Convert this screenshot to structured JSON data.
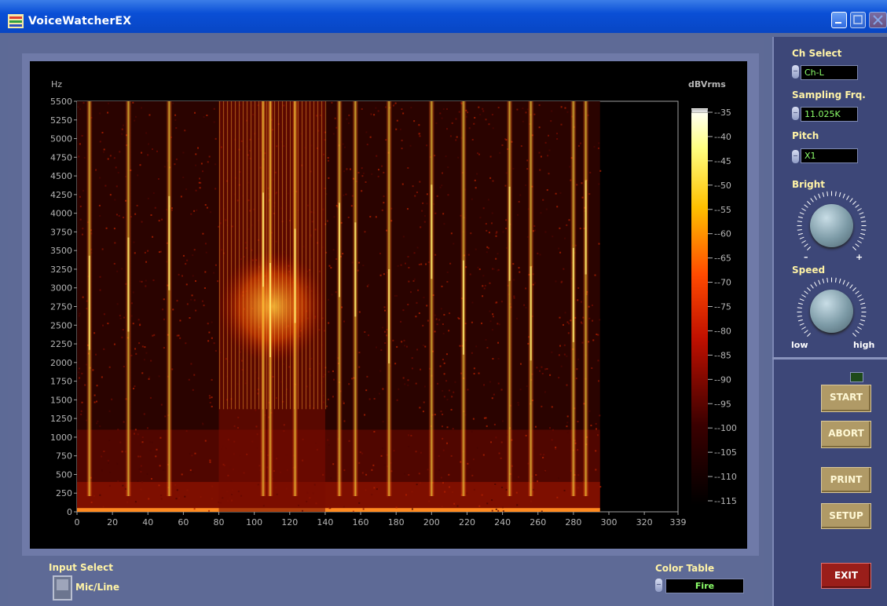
{
  "window": {
    "title": "VoiceWatcherEX"
  },
  "controls": {
    "ch_select": {
      "label": "Ch Select",
      "value": "Ch-L"
    },
    "sampling": {
      "label": "Sampling Frq.",
      "value": "11.025K"
    },
    "pitch": {
      "label": "Pitch",
      "value": "X1"
    },
    "bright": {
      "label": "Bright",
      "min_label": "–",
      "max_label": "+"
    },
    "speed": {
      "label": "Speed",
      "min_label": "low",
      "max_label": "high"
    },
    "start": "START",
    "abort": "ABORT",
    "print": "PRINT",
    "setup": "SETUP",
    "exit": "EXIT"
  },
  "input_select": {
    "label": "Input Select",
    "value": "Mic/Line"
  },
  "color_table": {
    "label": "Color Table",
    "value": "Fire"
  },
  "chart_data": {
    "type": "heatmap",
    "ylabel": "Hz",
    "colorbar_label": "dBVrms",
    "y_ticks": [
      0,
      250,
      500,
      750,
      1000,
      1250,
      1500,
      1750,
      2000,
      2250,
      2500,
      2750,
      3000,
      3250,
      3500,
      3750,
      4000,
      4250,
      4500,
      4750,
      5000,
      5250,
      5500
    ],
    "x_ticks": [
      0,
      20,
      40,
      60,
      80,
      100,
      120,
      140,
      160,
      180,
      200,
      220,
      240,
      260,
      280,
      300,
      320,
      339
    ],
    "colorbar_ticks": [
      -35,
      -40,
      -45,
      -50,
      -55,
      -60,
      -65,
      -70,
      -75,
      -80,
      -85,
      -90,
      -95,
      -100,
      -105,
      -110,
      -115
    ],
    "ylim": [
      0,
      5500
    ],
    "xlim": [
      0,
      339
    ],
    "clim": [
      -115,
      -35
    ],
    "colormap": "Fire",
    "data_extent_x": 295,
    "bright_streaks_x": [
      7,
      29,
      52,
      105,
      109,
      123,
      148,
      157,
      176,
      200,
      218,
      244,
      256,
      280,
      287
    ],
    "dense_region_x": [
      80,
      140
    ],
    "dense_region_hz": [
      2000,
      3500
    ],
    "colors": {
      "low": "#000000",
      "mid_low": "#a01000",
      "mid": "#ff3000",
      "mid_high": "#ffa000",
      "high": "#ffff60",
      "top": "#ffffff"
    }
  }
}
